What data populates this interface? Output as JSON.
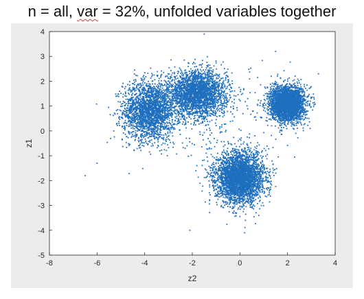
{
  "chart_data": {
    "type": "scatter",
    "title": "n = all, var = 32%, unfolded variables together",
    "title_parts": {
      "prefix": "n = all, ",
      "underlined": "var",
      "suffix": " = 32%, unfolded variables together"
    },
    "xlabel": "z2",
    "ylabel": "z1",
    "xlim": [
      -8,
      4
    ],
    "ylim": [
      -5,
      4
    ],
    "xticks": [
      "-8",
      "-6",
      "-4",
      "-2",
      "0",
      "2",
      "4"
    ],
    "yticks": [
      "-5",
      "-4",
      "-3",
      "-2",
      "-1",
      "0",
      "1",
      "2",
      "3",
      "4"
    ],
    "grid": false,
    "marker_color": "#1f6fbf",
    "clusters": [
      {
        "center": [
          -3.8,
          0.8
        ],
        "spread": [
          0.55,
          0.6
        ],
        "count": 2200
      },
      {
        "center": [
          -1.8,
          1.5
        ],
        "spread": [
          0.6,
          0.45
        ],
        "count": 2600
      },
      {
        "center": [
          2.0,
          1.1
        ],
        "spread": [
          0.35,
          0.35
        ],
        "count": 3200
      },
      {
        "center": [
          0.0,
          -1.9
        ],
        "spread": [
          0.5,
          0.5
        ],
        "count": 3400
      }
    ],
    "outliers": [
      {
        "x": -6.5,
        "y": -1.8
      },
      {
        "x": -6.0,
        "y": -1.3
      },
      {
        "x": -5.3,
        "y": 0.0
      },
      {
        "x": -2.1,
        "y": -4.0
      },
      {
        "x": -1.5,
        "y": 3.9
      },
      {
        "x": 0.2,
        "y": -4.1
      },
      {
        "x": 3.3,
        "y": 2.3
      },
      {
        "x": 1.5,
        "y": 3.2
      }
    ]
  }
}
